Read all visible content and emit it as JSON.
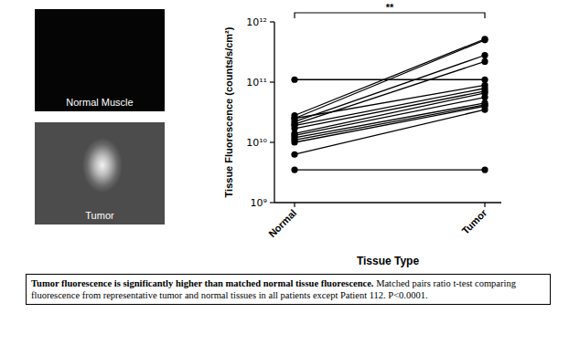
{
  "chart_data": {
    "type": "line",
    "log": "y",
    "grid": false,
    "marker": "circle",
    "color": "#000000",
    "y_label": "Tissue Fluorescence (counts/s/cm²)",
    "x_label": "Tissue Type",
    "annotation": "**",
    "categories": [
      "Normal",
      "Tumor"
    ],
    "ylim": [
      1000000000,
      1000000000000
    ],
    "yticks": [
      {
        "value": 1000000000,
        "label": "10⁹"
      },
      {
        "value": 10000000000,
        "label": "10¹⁰"
      },
      {
        "value": 100000000000,
        "label": "10¹¹"
      },
      {
        "value": 1000000000000,
        "label": "10¹²"
      }
    ],
    "series": [
      {
        "values": [
          110000000000.0,
          110000000000.0
        ]
      },
      {
        "values": [
          28000000000.0,
          520000000000.0
        ]
      },
      {
        "values": [
          25000000000.0,
          500000000000.0
        ]
      },
      {
        "values": [
          22000000000.0,
          280000000000.0
        ]
      },
      {
        "values": [
          20000000000.0,
          220000000000.0
        ]
      },
      {
        "values": [
          25000000000.0,
          89000000000.0
        ]
      },
      {
        "values": [
          19000000000.0,
          79000000000.0
        ]
      },
      {
        "values": [
          17000000000.0,
          71000000000.0
        ]
      },
      {
        "values": [
          14000000000.0,
          66000000000.0
        ]
      },
      {
        "values": [
          13000000000.0,
          56000000000.0
        ]
      },
      {
        "values": [
          12000000000.0,
          45000000000.0
        ]
      },
      {
        "values": [
          11000000000.0,
          42000000000.0
        ]
      },
      {
        "values": [
          10000000000.0,
          40000000000.0
        ]
      },
      {
        "values": [
          6300000000.0,
          35000000000.0
        ]
      },
      {
        "values": [
          3500000000.0,
          3500000000.0
        ]
      }
    ]
  },
  "panels": [
    {
      "label": "Normal Muscle"
    },
    {
      "label": "Tumor"
    }
  ],
  "caption": {
    "title": "Tumor fluorescence is significantly higher than matched normal tissue fluorescence.",
    "text": "Matched pairs ratio t-test comparing fluorescence from representative tumor and normal tissues in all patients except Patient 112. P<0.0001."
  }
}
